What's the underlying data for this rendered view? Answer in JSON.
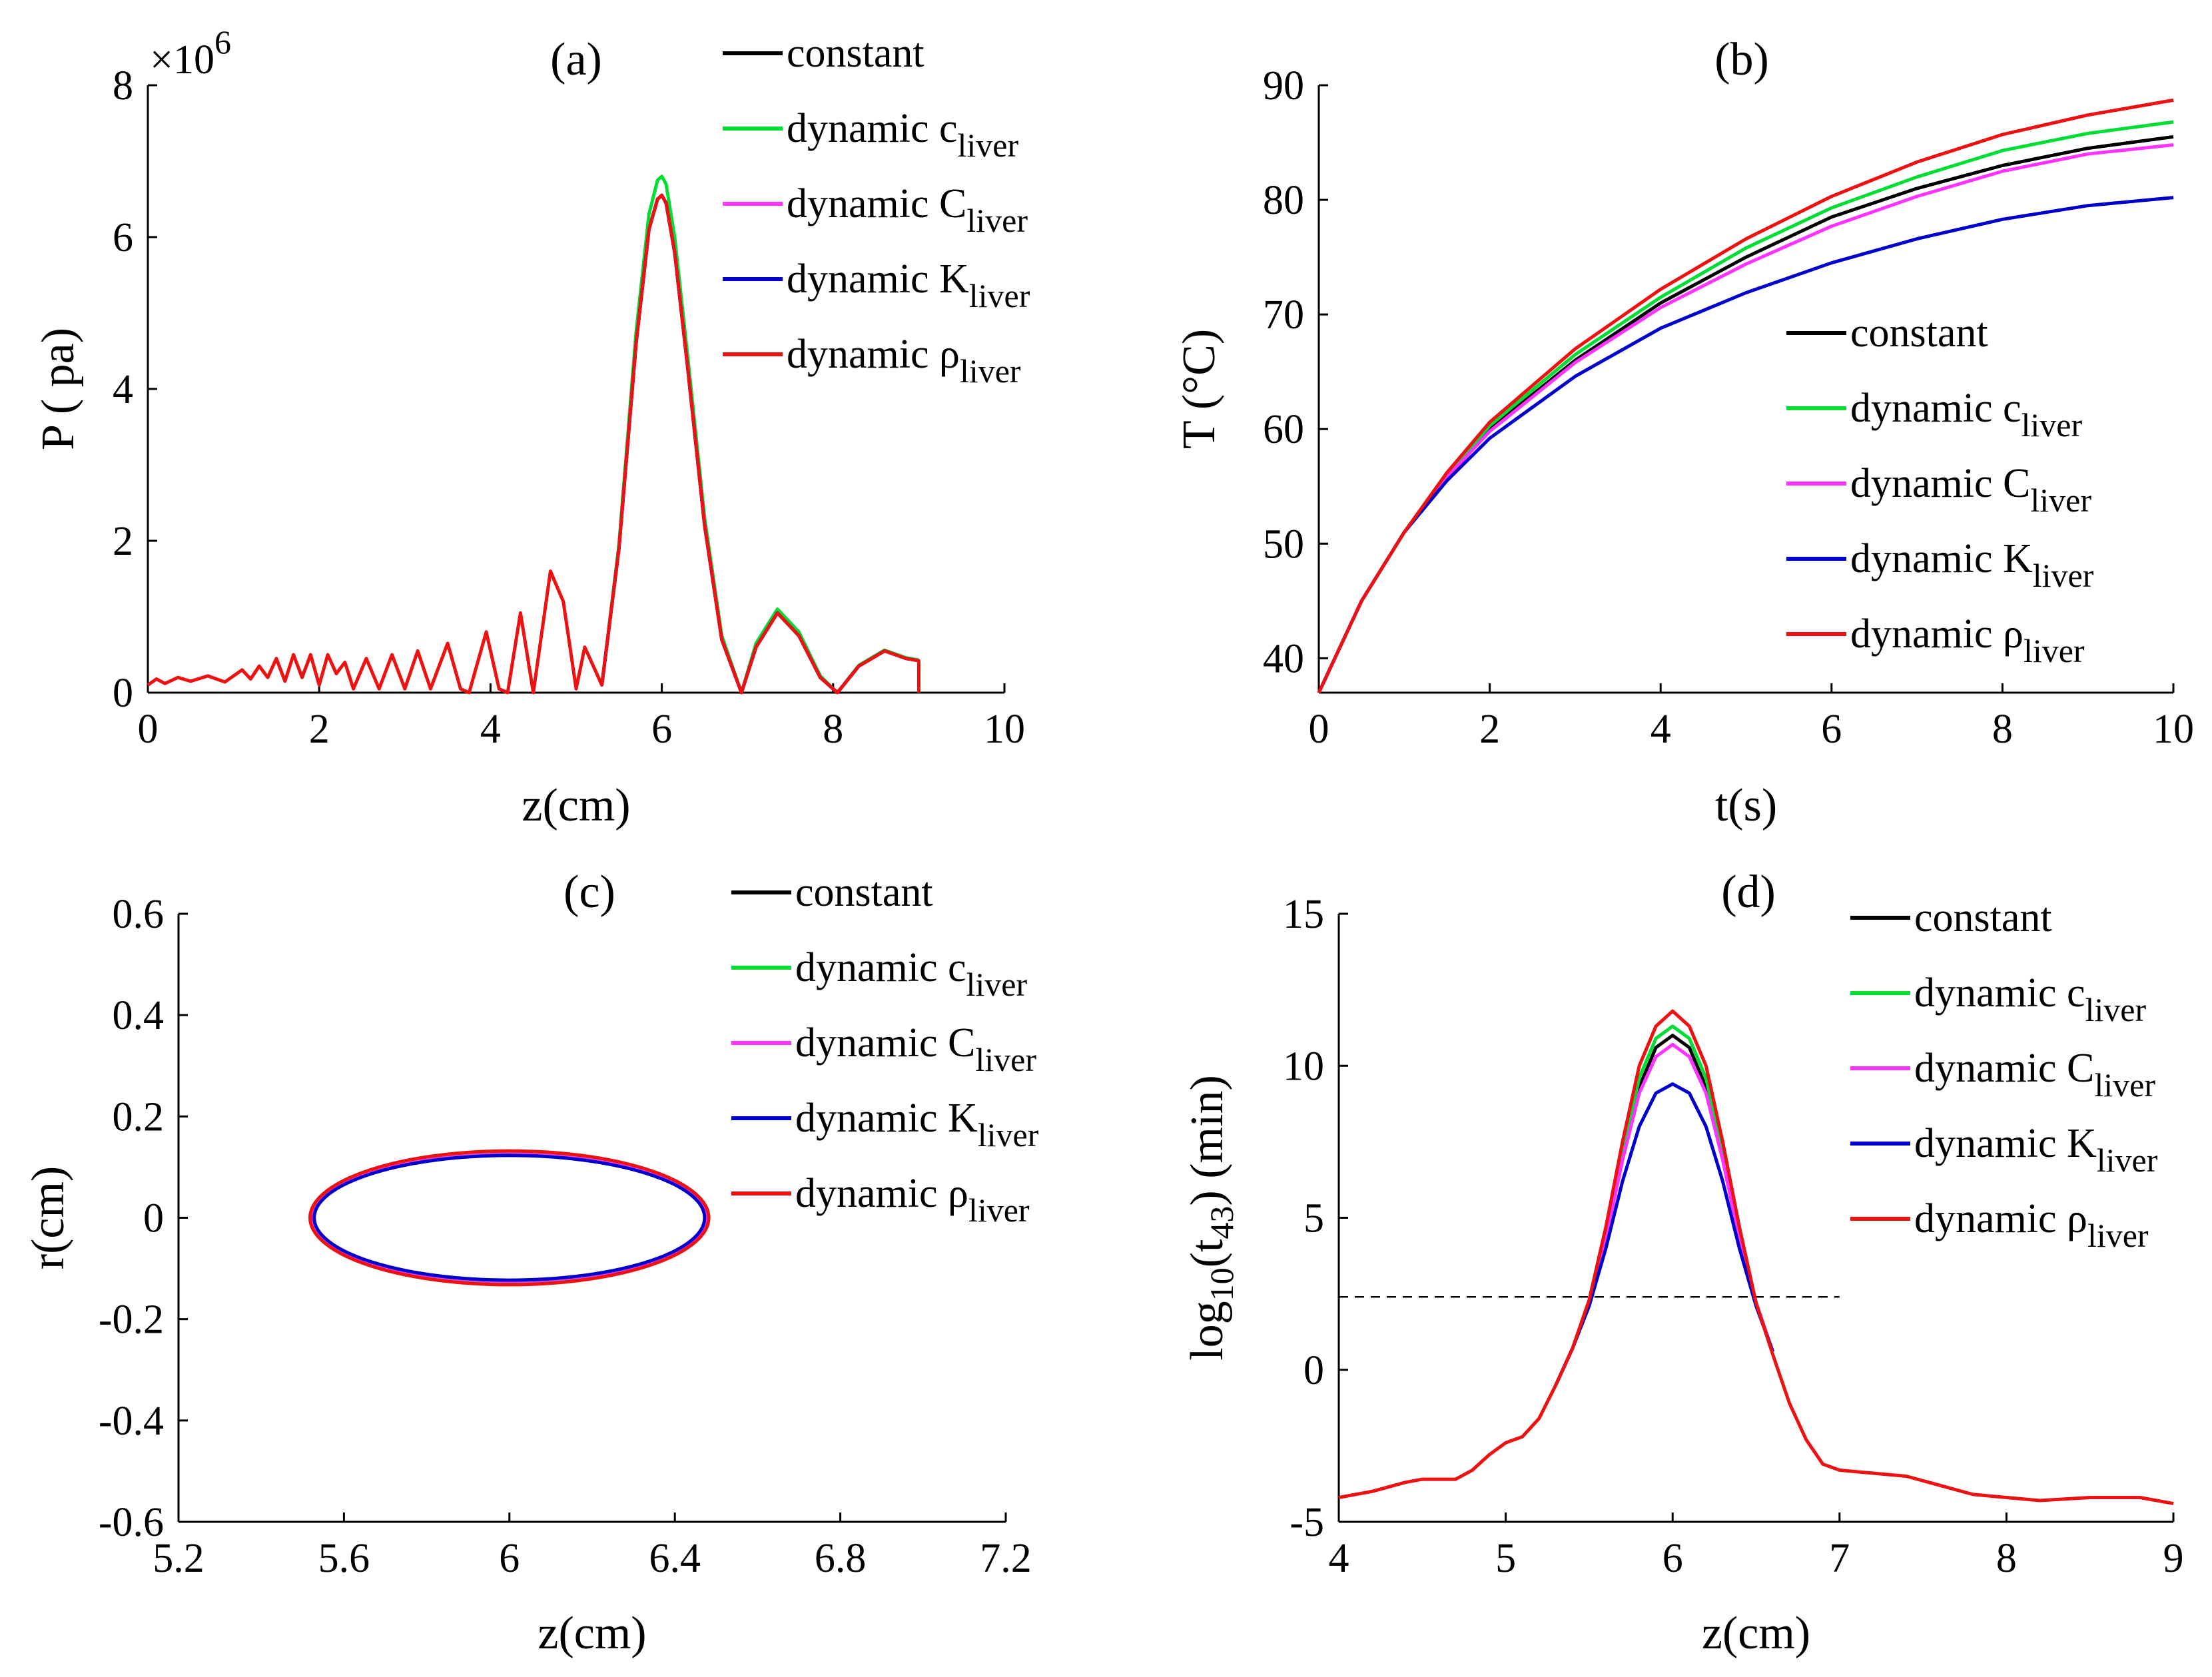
{
  "chart_data": [
    {
      "id": "a",
      "type": "line",
      "title": "(a)",
      "xlabel": "z(cm)",
      "ylabel": "P ( pa)",
      "exponent_label": "×10",
      "exponent_power": "6",
      "xlim": [
        0,
        10
      ],
      "ylim": [
        0,
        8
      ],
      "xticks": [
        0,
        2,
        4,
        6,
        8,
        10
      ],
      "xtick_labels": [
        "0",
        "2",
        "4",
        "6",
        "8",
        "10"
      ],
      "yticks": [
        0,
        2,
        4,
        6,
        8
      ],
      "ytick_labels": [
        "0",
        "2",
        "4",
        "6",
        "8"
      ],
      "legend_position": "top-right",
      "series": [
        {
          "name": "constant",
          "label": "constant",
          "sub": "",
          "color": "#000000",
          "x": [
            5.3,
            5.5,
            5.7,
            5.85,
            5.95,
            6.0,
            6.05,
            6.15,
            6.3,
            6.5,
            6.7,
            6.93,
            7.1,
            7.35,
            7.6,
            7.85,
            8.05,
            8.3,
            8.6,
            8.85,
            9.0
          ],
          "y": [
            0.1,
            1.9,
            4.6,
            6.1,
            6.5,
            6.55,
            6.45,
            5.8,
            4.3,
            2.2,
            0.7,
            0.0,
            0.6,
            1.05,
            0.75,
            0.2,
            0.0,
            0.35,
            0.55,
            0.45,
            0.42
          ]
        },
        {
          "name": "dynamic c_liver",
          "label": "dynamic c",
          "sub": "liver",
          "color": "#00dd33",
          "x": [
            5.3,
            5.5,
            5.7,
            5.85,
            5.95,
            6.0,
            6.05,
            6.15,
            6.3,
            6.5,
            6.7,
            6.93,
            7.1,
            7.35,
            7.6,
            7.85,
            8.05,
            8.3,
            8.6,
            8.85,
            9.0
          ],
          "y": [
            0.1,
            1.95,
            4.75,
            6.3,
            6.75,
            6.8,
            6.7,
            6.0,
            4.45,
            2.3,
            0.75,
            0.0,
            0.65,
            1.1,
            0.8,
            0.22,
            0.0,
            0.36,
            0.56,
            0.46,
            0.43
          ]
        },
        {
          "name": "dynamic C_liver",
          "label": "dynamic C",
          "sub": "liver",
          "color": "#ff33ff",
          "x": [
            5.3,
            5.5,
            5.7,
            5.85,
            5.95,
            6.0,
            6.05,
            6.15,
            6.3,
            6.5,
            6.7,
            6.93,
            7.1,
            7.35,
            7.6,
            7.85,
            8.05,
            8.3,
            8.6,
            8.85,
            9.0
          ],
          "y": [
            0.1,
            1.9,
            4.6,
            6.1,
            6.5,
            6.55,
            6.45,
            5.8,
            4.3,
            2.2,
            0.7,
            0.0,
            0.6,
            1.05,
            0.75,
            0.2,
            0.0,
            0.35,
            0.55,
            0.45,
            0.42
          ]
        },
        {
          "name": "dynamic K_liver",
          "label": "dynamic K",
          "sub": "liver",
          "color": "#0000cc",
          "x": [
            5.3,
            5.5,
            5.7,
            5.85,
            5.95,
            6.0,
            6.05,
            6.15,
            6.3,
            6.5,
            6.7,
            6.93,
            7.1,
            7.35,
            7.6,
            7.85,
            8.05,
            8.3,
            8.6,
            8.85,
            9.0
          ],
          "y": [
            0.1,
            1.9,
            4.6,
            6.1,
            6.5,
            6.55,
            6.45,
            5.8,
            4.3,
            2.2,
            0.7,
            0.0,
            0.6,
            1.05,
            0.75,
            0.2,
            0.0,
            0.35,
            0.55,
            0.45,
            0.42
          ]
        },
        {
          "name": "dynamic rho_liver",
          "label": "dynamic ρ",
          "sub": "liver",
          "color": "#ee1111",
          "x": [
            0.0,
            0.1,
            0.2,
            0.35,
            0.5,
            0.7,
            0.9,
            1.1,
            1.2,
            1.3,
            1.4,
            1.5,
            1.6,
            1.7,
            1.8,
            1.9,
            2.0,
            2.1,
            2.2,
            2.3,
            2.4,
            2.55,
            2.7,
            2.85,
            3.0,
            3.15,
            3.3,
            3.5,
            3.65,
            3.75,
            3.95,
            4.1,
            4.2,
            4.35,
            4.5,
            4.7,
            4.85,
            5.0,
            5.1,
            5.3,
            5.5,
            5.7,
            5.85,
            5.95,
            6.0,
            6.05,
            6.15,
            6.3,
            6.5,
            6.7,
            6.93,
            7.1,
            7.35,
            7.6,
            7.85,
            8.05,
            8.3,
            8.6,
            8.85,
            9.0,
            9.0
          ],
          "y": [
            0.1,
            0.18,
            0.12,
            0.2,
            0.15,
            0.22,
            0.14,
            0.3,
            0.18,
            0.35,
            0.2,
            0.45,
            0.15,
            0.5,
            0.2,
            0.5,
            0.1,
            0.5,
            0.25,
            0.4,
            0.05,
            0.45,
            0.05,
            0.5,
            0.05,
            0.55,
            0.05,
            0.65,
            0.05,
            0.0,
            0.8,
            0.05,
            0.0,
            1.05,
            0.0,
            1.6,
            1.2,
            0.05,
            0.6,
            0.1,
            1.9,
            4.6,
            6.1,
            6.5,
            6.55,
            6.45,
            5.8,
            4.3,
            2.2,
            0.7,
            0.0,
            0.6,
            1.05,
            0.75,
            0.2,
            0.0,
            0.35,
            0.55,
            0.45,
            0.42,
            0.0
          ]
        }
      ]
    },
    {
      "id": "b",
      "type": "line",
      "title": "(b)",
      "xlabel": "t(s)",
      "ylabel": "T (°C)",
      "xlim": [
        0,
        10
      ],
      "ylim": [
        37,
        90
      ],
      "xticks": [
        0,
        2,
        4,
        6,
        8,
        10
      ],
      "xtick_labels": [
        "0",
        "2",
        "4",
        "6",
        "8",
        "10"
      ],
      "yticks": [
        40,
        50,
        60,
        70,
        80,
        90
      ],
      "ytick_labels": [
        "40",
        "50",
        "60",
        "70",
        "80",
        "90"
      ],
      "legend_position": "center-right",
      "series": [
        {
          "name": "constant",
          "label": "constant",
          "sub": "",
          "color": "#000000",
          "x": [
            0,
            0.5,
            1,
            1.5,
            2,
            3,
            4,
            5,
            6,
            7,
            8,
            9,
            10
          ],
          "y": [
            37,
            45,
            51,
            56,
            60,
            66,
            71,
            75,
            78.5,
            81,
            83,
            84.5,
            85.5
          ]
        },
        {
          "name": "dynamic c_liver",
          "label": "dynamic c",
          "sub": "liver",
          "color": "#00dd33",
          "x": [
            0,
            0.5,
            1,
            1.5,
            2,
            3,
            4,
            5,
            6,
            7,
            8,
            9,
            10
          ],
          "y": [
            37,
            45,
            51,
            56,
            60.3,
            66.5,
            71.5,
            75.8,
            79.3,
            82,
            84.3,
            85.8,
            86.8
          ]
        },
        {
          "name": "dynamic C_liver",
          "label": "dynamic C",
          "sub": "liver",
          "color": "#ff33ff",
          "x": [
            0,
            0.5,
            1,
            1.5,
            2,
            3,
            4,
            5,
            6,
            7,
            8,
            9,
            10
          ],
          "y": [
            37,
            45,
            51,
            55.8,
            59.8,
            65.8,
            70.6,
            74.4,
            77.7,
            80.3,
            82.5,
            84,
            84.8
          ]
        },
        {
          "name": "dynamic K_liver",
          "label": "dynamic K",
          "sub": "liver",
          "color": "#0000cc",
          "x": [
            0,
            0.5,
            1,
            1.5,
            2,
            3,
            4,
            5,
            6,
            7,
            8,
            9,
            10
          ],
          "y": [
            37,
            45,
            51,
            55.5,
            59.2,
            64.6,
            68.8,
            71.9,
            74.5,
            76.6,
            78.3,
            79.5,
            80.2
          ]
        },
        {
          "name": "dynamic rho_liver",
          "label": "dynamic ρ",
          "sub": "liver",
          "color": "#ee1111",
          "x": [
            0,
            0.5,
            1,
            1.5,
            2,
            3,
            4,
            5,
            6,
            7,
            8,
            9,
            10
          ],
          "y": [
            37,
            45,
            51,
            56.2,
            60.6,
            67,
            72.2,
            76.6,
            80.3,
            83.3,
            85.7,
            87.4,
            88.7
          ]
        }
      ]
    },
    {
      "id": "c",
      "type": "line",
      "title": "(c)",
      "xlabel": "z(cm)",
      "ylabel": "r(cm)",
      "xlim": [
        5.2,
        7.2
      ],
      "ylim": [
        -0.6,
        0.6
      ],
      "xticks": [
        5.2,
        5.6,
        6.0,
        6.4,
        6.8,
        7.2
      ],
      "xtick_labels": [
        "5.2",
        "5.6",
        "6",
        "6.4",
        "6.8",
        "7.2"
      ],
      "yticks": [
        -0.6,
        -0.4,
        -0.2,
        0,
        0.2,
        0.4,
        0.6
      ],
      "ytick_labels": [
        "-0.6",
        "-0.4",
        "-0.2",
        "0",
        "0.2",
        "0.4",
        "0.6"
      ],
      "legend_position": "top-right",
      "series": [
        {
          "name": "constant",
          "label": "constant",
          "sub": "",
          "color": "#000000",
          "shape": "ellipse",
          "center": [
            6.0,
            0
          ],
          "semi_axes": [
            0.475,
            0.125
          ]
        },
        {
          "name": "dynamic c_liver",
          "label": "dynamic c",
          "sub": "liver",
          "color": "#00dd33",
          "shape": "ellipse",
          "center": [
            6.0,
            0
          ],
          "semi_axes": [
            0.478,
            0.128
          ]
        },
        {
          "name": "dynamic C_liver",
          "label": "dynamic C",
          "sub": "liver",
          "color": "#ff33ff",
          "shape": "ellipse",
          "center": [
            6.0,
            0
          ],
          "semi_axes": [
            0.475,
            0.125
          ]
        },
        {
          "name": "dynamic K_liver",
          "label": "dynamic K",
          "sub": "liver",
          "color": "#0000cc",
          "shape": "ellipse",
          "center": [
            6.0,
            0
          ],
          "semi_axes": [
            0.472,
            0.123
          ]
        },
        {
          "name": "dynamic rho_liver",
          "label": "dynamic ρ",
          "sub": "liver",
          "color": "#ee1111",
          "shape": "ellipse",
          "center": [
            6.0,
            0
          ],
          "semi_axes": [
            0.482,
            0.132
          ]
        }
      ]
    },
    {
      "id": "d",
      "type": "line",
      "title": "(d)",
      "xlabel": "z(cm)",
      "ylabel": "log",
      "ylabel_sub1": "10",
      "ylabel_mid": "(t",
      "ylabel_sub2": "43",
      "ylabel_end": ") (min)",
      "xlim": [
        4,
        9
      ],
      "ylim": [
        -5,
        15
      ],
      "xticks": [
        4,
        5,
        6,
        7,
        8,
        9
      ],
      "xtick_labels": [
        "4",
        "5",
        "6",
        "7",
        "8",
        "9"
      ],
      "yticks": [
        -5,
        0,
        5,
        10,
        15
      ],
      "ytick_labels": [
        "-5",
        "0",
        "5",
        "10",
        "15"
      ],
      "legend_position": "top-right",
      "threshold": {
        "y": 2.4,
        "x_range": [
          4,
          7
        ]
      },
      "series": [
        {
          "name": "constant",
          "label": "constant",
          "sub": "",
          "color": "#000000",
          "x": [
            5.3,
            5.4,
            5.5,
            5.6,
            5.7,
            5.8,
            5.9,
            6.0,
            6.1,
            6.2,
            6.3,
            6.4,
            6.5,
            6.6
          ],
          "y": [
            -0.5,
            0.7,
            2.2,
            4.4,
            7.0,
            9.3,
            10.6,
            11.0,
            10.6,
            9.3,
            7.0,
            4.4,
            2.2,
            0.6
          ]
        },
        {
          "name": "dynamic c_liver",
          "label": "dynamic c",
          "sub": "liver",
          "color": "#00dd33",
          "x": [
            5.3,
            5.4,
            5.5,
            5.6,
            5.7,
            5.8,
            5.9,
            6.0,
            6.1,
            6.2,
            6.3,
            6.4,
            6.5,
            6.6
          ],
          "y": [
            -0.5,
            0.7,
            2.2,
            4.5,
            7.2,
            9.6,
            10.9,
            11.3,
            10.9,
            9.6,
            7.2,
            4.5,
            2.2,
            0.6
          ]
        },
        {
          "name": "dynamic C_liver",
          "label": "dynamic C",
          "sub": "liver",
          "color": "#ff33ff",
          "x": [
            5.3,
            5.4,
            5.5,
            5.6,
            5.7,
            5.8,
            5.9,
            6.0,
            6.1,
            6.2,
            6.3,
            6.4,
            6.5,
            6.6
          ],
          "y": [
            -0.5,
            0.7,
            2.2,
            4.3,
            6.9,
            9.1,
            10.3,
            10.7,
            10.3,
            9.1,
            6.9,
            4.3,
            2.2,
            0.6
          ]
        },
        {
          "name": "dynamic K_liver",
          "label": "dynamic K",
          "sub": "liver",
          "color": "#0000cc",
          "x": [
            5.3,
            5.4,
            5.5,
            5.6,
            5.7,
            5.8,
            5.9,
            6.0,
            6.1,
            6.2,
            6.3,
            6.4,
            6.5,
            6.6
          ],
          "y": [
            -0.5,
            0.7,
            2.1,
            4.0,
            6.2,
            8.0,
            9.1,
            9.4,
            9.1,
            8.0,
            6.2,
            4.0,
            2.1,
            0.6
          ]
        },
        {
          "name": "dynamic rho_liver",
          "label": "dynamic ρ",
          "sub": "liver",
          "color": "#ee1111",
          "x": [
            4.0,
            4.2,
            4.4,
            4.5,
            4.6,
            4.7,
            4.8,
            4.9,
            5.0,
            5.1,
            5.2,
            5.3,
            5.4,
            5.5,
            5.6,
            5.7,
            5.8,
            5.9,
            6.0,
            6.1,
            6.2,
            6.3,
            6.4,
            6.5,
            6.6,
            6.7,
            6.8,
            6.9,
            7.0,
            7.2,
            7.4,
            7.6,
            7.8,
            8.0,
            8.2,
            8.5,
            8.8,
            9.0
          ],
          "y": [
            -4.2,
            -4.0,
            -3.7,
            -3.6,
            -3.6,
            -3.6,
            -3.3,
            -2.8,
            -2.4,
            -2.2,
            -1.6,
            -0.5,
            0.7,
            2.3,
            4.7,
            7.5,
            10.0,
            11.3,
            11.8,
            11.3,
            10.0,
            7.5,
            4.7,
            2.2,
            0.5,
            -1.1,
            -2.3,
            -3.1,
            -3.3,
            -3.4,
            -3.5,
            -3.8,
            -4.1,
            -4.2,
            -4.3,
            -4.2,
            -4.2,
            -4.4
          ]
        }
      ]
    }
  ]
}
